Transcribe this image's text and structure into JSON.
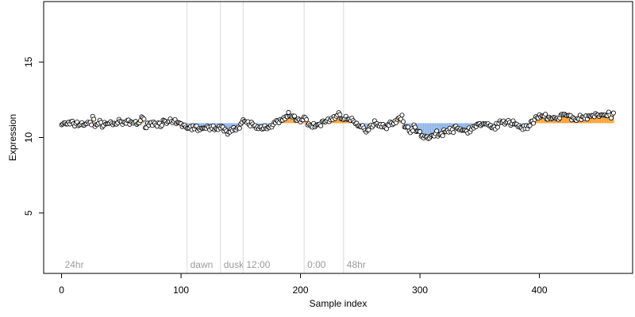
{
  "chart_data": {
    "type": "scatter",
    "title": "",
    "xlabel": "Sample index",
    "ylabel": "Expression",
    "xlim": [
      -15,
      478
    ],
    "ylim": [
      1.0,
      19.0
    ],
    "x_ticks": [
      0,
      100,
      200,
      300,
      400
    ],
    "y_ticks": [
      5,
      10,
      15
    ],
    "baseline": 10.95,
    "grid": false,
    "colors": {
      "point_fill": "#ffffff",
      "point_stroke": "#000000",
      "above_fill": "#ff9f2e",
      "below_fill": "#8fb6e8",
      "phase_line": "#d9d9d9",
      "phase_text": "#9a9a9a"
    },
    "phase_markers": [
      {
        "label": "24hr",
        "x": 0
      },
      {
        "label": "dawn",
        "x": 105
      },
      {
        "label": "dusk",
        "x": 133
      },
      {
        "label": "12:00",
        "x": 152
      },
      {
        "label": "0:00",
        "x": 203
      },
      {
        "label": "48hr",
        "x": 236
      }
    ],
    "series": [
      {
        "segments": [
          [
            0,
            10.9
          ],
          [
            25,
            10.9
          ],
          [
            26,
            11.4
          ],
          [
            28,
            10.9
          ],
          [
            65,
            11.0
          ],
          [
            68,
            11.25
          ],
          [
            70,
            10.9
          ],
          [
            95,
            11.0
          ],
          [
            105,
            10.7
          ],
          [
            120,
            10.55
          ],
          [
            130,
            10.7
          ],
          [
            138,
            10.45
          ],
          [
            148,
            10.6
          ],
          [
            152,
            11.0
          ],
          [
            158,
            10.9
          ],
          [
            165,
            10.6
          ],
          [
            175,
            10.8
          ],
          [
            185,
            11.15
          ],
          [
            190,
            11.45
          ],
          [
            198,
            11.2
          ],
          [
            205,
            11.15
          ],
          [
            210,
            10.7
          ],
          [
            218,
            10.95
          ],
          [
            225,
            11.2
          ],
          [
            232,
            11.5
          ],
          [
            240,
            11.2
          ],
          [
            248,
            10.8
          ],
          [
            255,
            10.5
          ],
          [
            262,
            11.0
          ],
          [
            270,
            10.75
          ],
          [
            280,
            11.0
          ],
          [
            285,
            11.5
          ],
          [
            288,
            10.55
          ],
          [
            295,
            10.6
          ],
          [
            300,
            10.3
          ],
          [
            305,
            10.0
          ],
          [
            310,
            10.1
          ],
          [
            320,
            10.35
          ],
          [
            330,
            10.55
          ],
          [
            340,
            10.45
          ],
          [
            350,
            10.9
          ],
          [
            360,
            10.7
          ],
          [
            370,
            11.0
          ],
          [
            380,
            10.95
          ],
          [
            385,
            10.6
          ],
          [
            392,
            10.8
          ],
          [
            398,
            11.3
          ],
          [
            405,
            11.4
          ],
          [
            415,
            11.2
          ],
          [
            420,
            11.5
          ],
          [
            430,
            11.25
          ],
          [
            440,
            11.35
          ],
          [
            448,
            11.55
          ],
          [
            455,
            11.4
          ],
          [
            462,
            11.5
          ]
        ],
        "noise": 0.2,
        "seed": 7,
        "n": 463
      }
    ]
  }
}
